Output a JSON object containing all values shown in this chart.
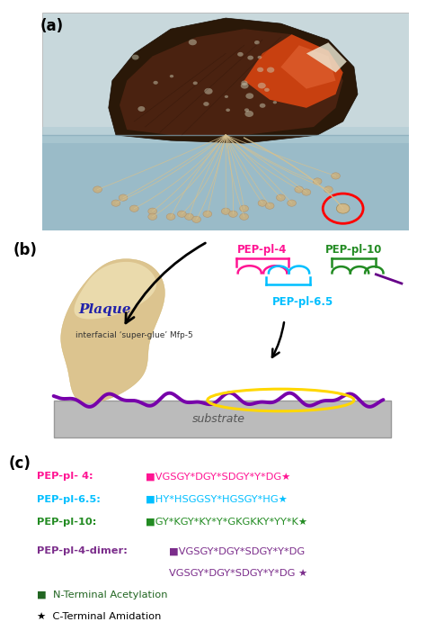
{
  "panel_labels": [
    "(a)",
    "(b)",
    "(c)"
  ],
  "panel_label_color": "black",
  "panel_label_fontsize": 12,
  "pep4_label": "PEP-pl- 4:",
  "pep4_color": "#FF1493",
  "pep4_seq": "■VGSGY*DGY*SDGY*Y*DG★",
  "pep65_label": "PEP-pl-6.5:",
  "pep65_color": "#00BFFF",
  "pep65_seq": "■HY*HSGGSY*HGSGY*HG★",
  "pep10_label": "PEP-pl-10:",
  "pep10_color": "#228B22",
  "pep10_seq": "■GY*KGY*KY*Y*GKGKKY*YY*K★",
  "dimer_label": "PEP-pl-4-dimer:",
  "dimer_color": "#7B2D8B",
  "dimer_seq1": "■VGSGY*DGY*SDGY*Y*DG",
  "dimer_seq2": "VGSGY*DGY*SDGY*Y*DG ★",
  "legend1_square": "■",
  "legend1_text": "  N-Terminal Acetylation",
  "legend2_star": "★",
  "legend2_text": "  C-Terminal Amidation",
  "plaque_text": "Plaque",
  "superglue_text": "interfacial ‘super-glue’ Mfp-5",
  "substrate_text": "substrate",
  "pep4_diagram_label": "PEP-pl-4",
  "pep65_diagram_label": "PEP-pl-6.5",
  "pep10_diagram_label": "PEP-pl-10",
  "mussel_bg": "#C8DCE0",
  "mussel_shell_dark": "#3A2010",
  "mussel_shell_mid": "#6B3818",
  "mussel_shell_orange": "#C84818",
  "mussel_shell_light": "#E8E8D0",
  "thread_color": "#D4C090",
  "thread_tip_color": "#C8B080",
  "water_color": "#90B8C8"
}
